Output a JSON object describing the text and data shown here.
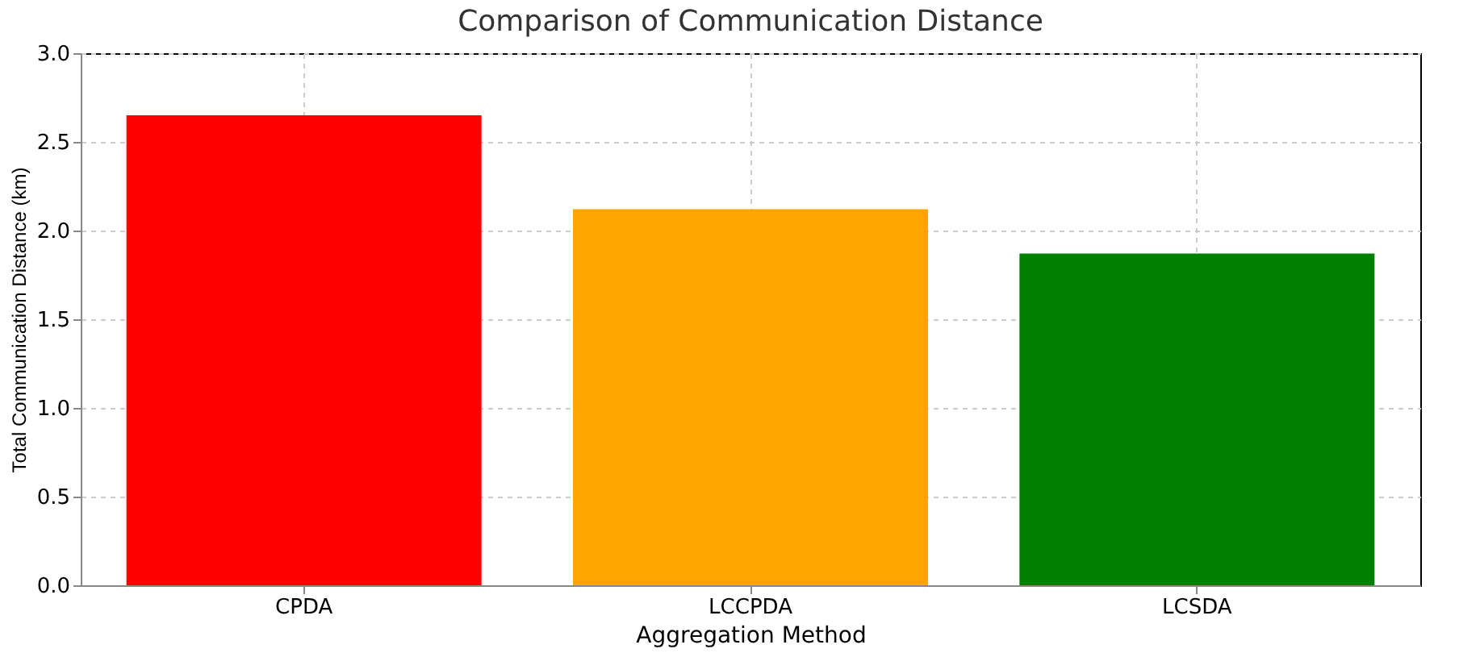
{
  "chart_data": {
    "type": "bar",
    "title": "Comparison of Communication Distance",
    "xlabel": "Aggregation Method",
    "ylabel": "Total Communication Distance (km)",
    "categories": [
      "CPDA",
      "LCCPDA",
      "LCSDA"
    ],
    "values": [
      2.65,
      2.12,
      1.87
    ],
    "colors": [
      "#ff0000",
      "#ffa500",
      "#008000"
    ],
    "ylim": [
      0,
      3.0
    ],
    "yticks": [
      {
        "value": 0,
        "label": "0.0"
      },
      {
        "value": 0.5,
        "label": "0.5"
      },
      {
        "value": 1.0,
        "label": "1.0"
      },
      {
        "value": 1.5,
        "label": "1.5"
      },
      {
        "value": 2.0,
        "label": "2.0"
      },
      {
        "value": 2.5,
        "label": "2.5"
      },
      {
        "value": 3.0,
        "label": "3.0"
      }
    ],
    "grid": true
  }
}
